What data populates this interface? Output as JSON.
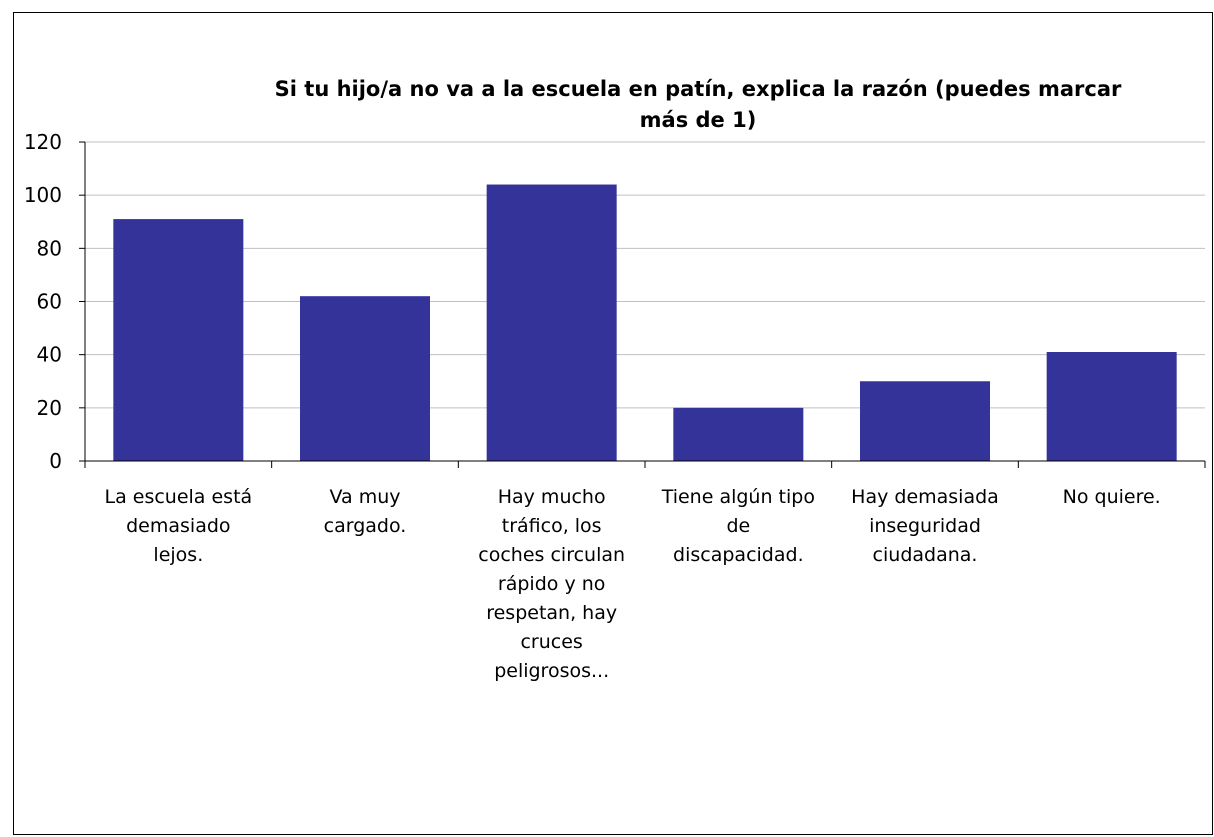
{
  "chart_data": {
    "type": "bar",
    "title_lines": [
      "Si tu hijo/a no va a la escuela en patín, explica la razón (puedes marcar",
      "más de 1)"
    ],
    "categories": [
      [
        "La escuela está",
        "demasiado",
        "lejos."
      ],
      [
        "Va muy",
        "cargado."
      ],
      [
        "Hay mucho",
        "tráfico, los",
        "coches circulan",
        "rápido y no",
        "respetan, hay",
        "cruces",
        "peligrosos..."
      ],
      [
        "Tiene algún tipo",
        "de",
        "discapacidad."
      ],
      [
        "Hay demasiada",
        "inseguridad",
        "ciudadana."
      ],
      [
        "No quiere."
      ]
    ],
    "values": [
      91,
      62,
      104,
      20,
      30,
      41
    ],
    "ylim": [
      0,
      120
    ],
    "yticks": [
      0,
      20,
      40,
      60,
      80,
      100,
      120
    ],
    "grid": true,
    "legend": "none",
    "colors": {
      "bar": "#333399",
      "grid": "#c0c0c0",
      "axis": "#000000"
    }
  }
}
